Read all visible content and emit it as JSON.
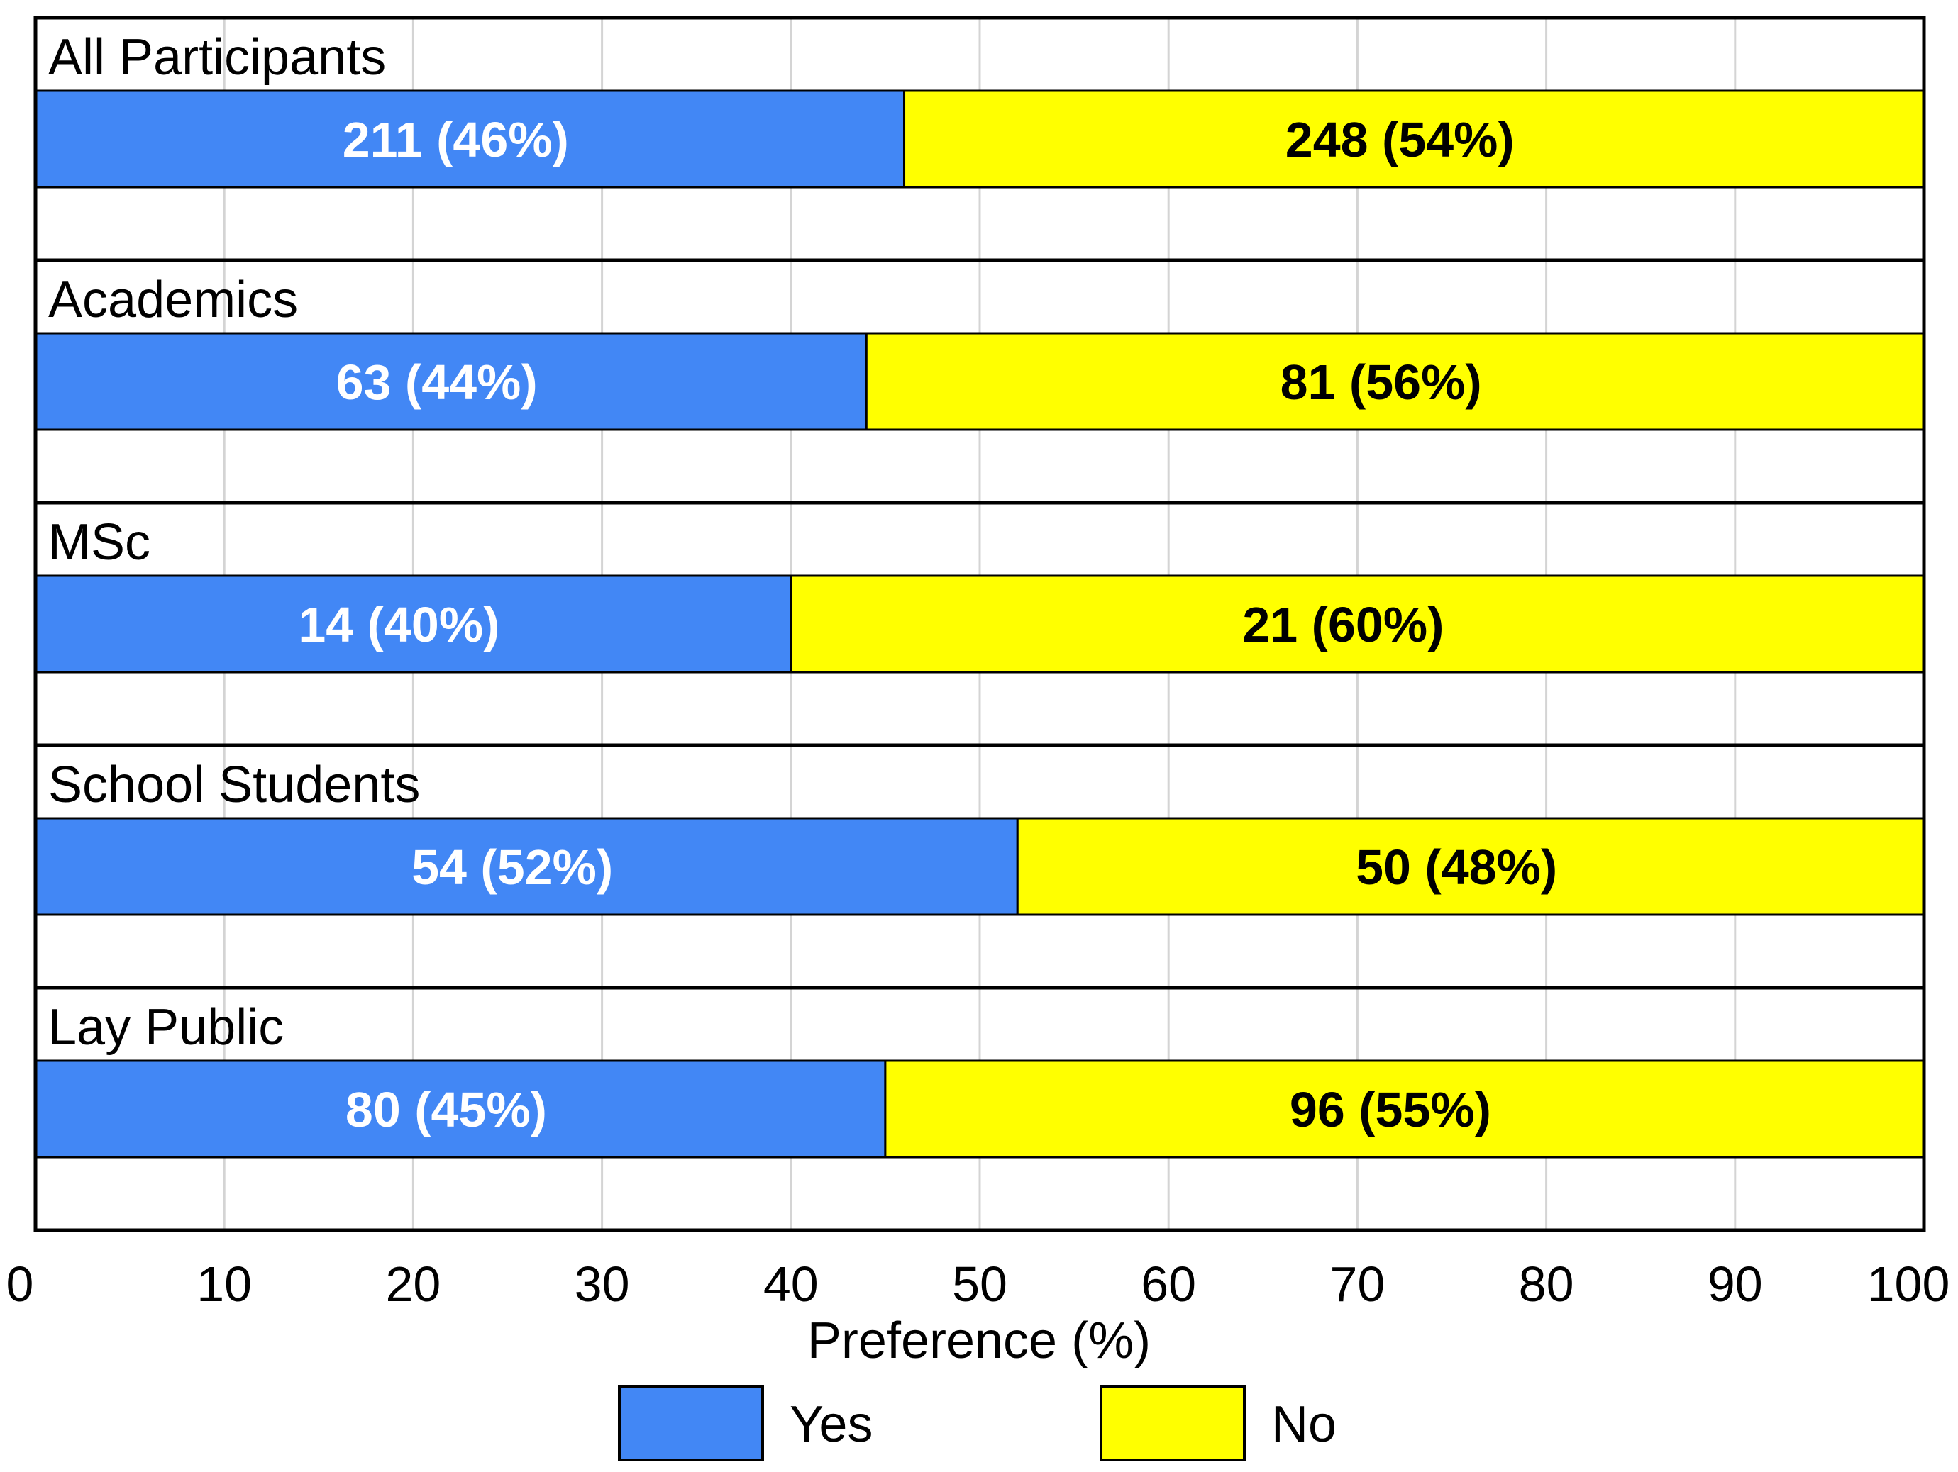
{
  "chart_data": {
    "type": "bar",
    "orientation": "horizontal",
    "stacked": true,
    "title": "",
    "xlabel": "Preference (%)",
    "ylabel": "",
    "xlim": [
      0,
      100
    ],
    "xticks": [
      0,
      10,
      20,
      30,
      40,
      50,
      60,
      70,
      80,
      90,
      100
    ],
    "grid": true,
    "legend_position": "bottom-center",
    "categories": [
      "All Participants",
      "Academics",
      "MSc",
      "School Students",
      "Lay Public"
    ],
    "series": [
      {
        "name": "Yes",
        "color": "#4287f5",
        "label_color": "#ffffff",
        "values": [
          46,
          44,
          40,
          52,
          45
        ],
        "labels": [
          "211 (46%)",
          "63 (44%)",
          "14 (40%)",
          "54 (52%)",
          "80 (45%)"
        ]
      },
      {
        "name": "No",
        "color": "#ffff00",
        "label_color": "#000000",
        "values": [
          54,
          56,
          60,
          48,
          55
        ],
        "labels": [
          "248 (54%)",
          "81 (56%)",
          "21 (60%)",
          "50 (48%)",
          "96 (55%)"
        ]
      }
    ]
  }
}
